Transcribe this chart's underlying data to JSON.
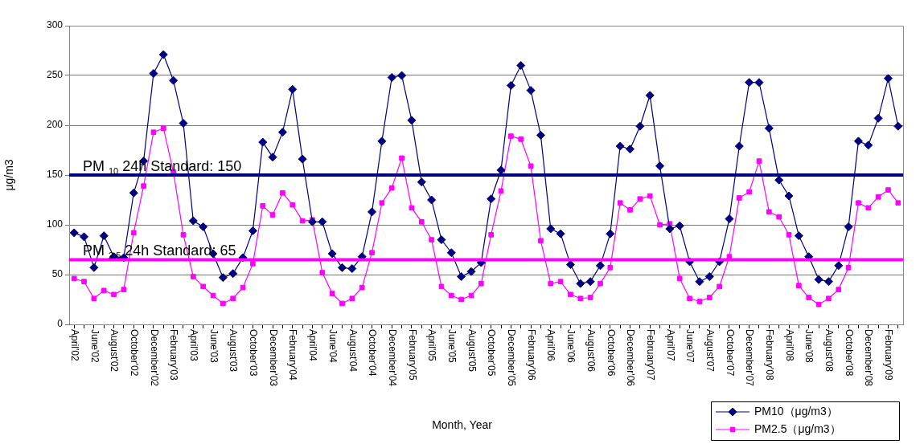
{
  "chart_data": {
    "type": "line",
    "xlabel": "Month, Year",
    "ylabel": "μg/m3",
    "categories": [
      "April'02",
      null,
      "June'02",
      null,
      "August'02",
      null,
      "October'02",
      null,
      "December'02",
      null,
      "February'03",
      null,
      "April'03",
      null,
      "June'03",
      null,
      "August'03",
      null,
      "October'03",
      null,
      "December'03",
      null,
      "February'04",
      null,
      "April'04",
      null,
      "June'04",
      null,
      "August'04",
      null,
      "October'04",
      null,
      "December'04",
      null,
      "February'05",
      null,
      "April'05",
      null,
      "June'05",
      null,
      "August'05",
      null,
      "October'05",
      null,
      "December'05",
      null,
      "February'06",
      null,
      "April'06",
      null,
      "June'06",
      null,
      "August'06",
      null,
      "October'06",
      null,
      "December'06",
      null,
      "February'07",
      null,
      "April'07",
      null,
      "June'07",
      null,
      "August'07",
      null,
      "October'07",
      null,
      "December'07",
      null,
      "February'08",
      null,
      "April'08",
      null,
      "June'08",
      null,
      "August'08",
      null,
      "October'08",
      null,
      "December'08",
      null,
      "February'09",
      null
    ],
    "series": [
      {
        "name": "PM10（μg/m3）",
        "color": "#000080",
        "marker": "diamond",
        "values": [
          92,
          88,
          57,
          89,
          68,
          67,
          132,
          164,
          252,
          271,
          245,
          202,
          104,
          98,
          71,
          47,
          51,
          67,
          94,
          183,
          168,
          193,
          236,
          166,
          103,
          103,
          71,
          57,
          56,
          68,
          113,
          184,
          248,
          250,
          205,
          143,
          125,
          85,
          72,
          48,
          53,
          62,
          126,
          155,
          240,
          260,
          235,
          190,
          96,
          91,
          60,
          41,
          43,
          59,
          91,
          179,
          176,
          199,
          230,
          159,
          96,
          99,
          63,
          43,
          48,
          63,
          106,
          179,
          243,
          243,
          197,
          145,
          129,
          89,
          68,
          45,
          43,
          59,
          98,
          184,
          180,
          207,
          247,
          199
        ]
      },
      {
        "name": "PM2.5（μg/m3）",
        "color": "#ff00ff",
        "marker": "square",
        "values": [
          46,
          43,
          26,
          34,
          30,
          35,
          92,
          139,
          193,
          197,
          153,
          90,
          48,
          38,
          29,
          21,
          26,
          37,
          61,
          119,
          110,
          132,
          120,
          104,
          105,
          52,
          31,
          21,
          26,
          37,
          72,
          122,
          137,
          167,
          117,
          103,
          85,
          38,
          29,
          25,
          29,
          41,
          90,
          134,
          189,
          186,
          159,
          84,
          41,
          43,
          30,
          26,
          27,
          41,
          57,
          122,
          115,
          126,
          129,
          100,
          101,
          46,
          26,
          23,
          27,
          38,
          68,
          127,
          133,
          164,
          113,
          108,
          90,
          39,
          27,
          20,
          26,
          35,
          57,
          122,
          117,
          128,
          135,
          122
        ]
      }
    ],
    "ylim": [
      0,
      300
    ],
    "yticks": [
      0,
      50,
      100,
      150,
      200,
      250,
      300
    ],
    "grid": "y",
    "legend": "bottom right",
    "ref_lines": [
      {
        "axis": "y",
        "value": 150,
        "label": "PM $_{10}$ 24h Standard: 150",
        "color": "#000080"
      },
      {
        "axis": "y",
        "value": 65,
        "label": "PM $_{2.5}$ 24h Standard: 65",
        "color": "#ff00ff"
      }
    ]
  }
}
